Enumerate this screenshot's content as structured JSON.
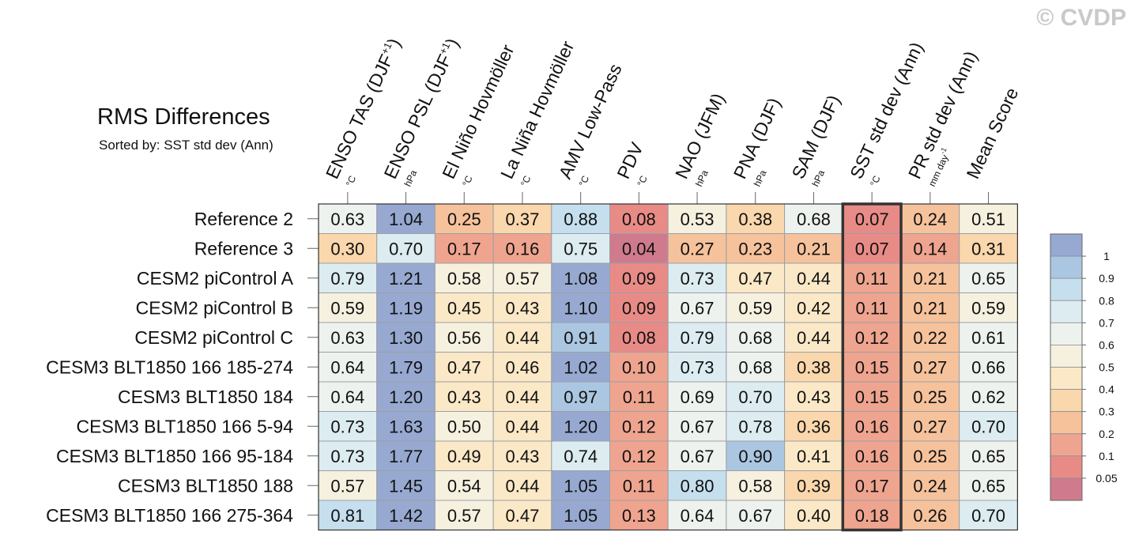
{
  "watermark": "© CVDP",
  "title": "RMS Differences",
  "subtitle": "Sorted by: SST std dev (Ann)",
  "highlight_column": "SST std dev (Ann)",
  "colorbar": {
    "labels": [
      "1",
      "0.9",
      "0.8",
      "0.7",
      "0.6",
      "0.5",
      "0.4",
      "0.3",
      "0.2",
      "0.1",
      "0.05"
    ],
    "colors": [
      "#97a9d1",
      "#abc6e0",
      "#c6dfee",
      "#dcecf1",
      "#eef2ee",
      "#f6f0df",
      "#fbe8c6",
      "#fad7ac",
      "#f6c29c",
      "#efa48f",
      "#e88b87",
      "#cf7b8d"
    ]
  },
  "chart_data": {
    "type": "heatmap",
    "title": "RMS Differences",
    "subtitle": "Sorted by: SST std dev (Ann)",
    "columns": [
      {
        "name": "ENSO TAS (DJF",
        "sup": "+1",
        "close": ")",
        "unit": "°C"
      },
      {
        "name": "ENSO PSL (DJF",
        "sup": "+1",
        "close": ")",
        "unit": "hPa"
      },
      {
        "name": "El Niño Hovmöller",
        "unit": "°C"
      },
      {
        "name": "La Niña Hovmöller",
        "unit": "°C"
      },
      {
        "name": "AMV Low-Pass",
        "unit": "°C"
      },
      {
        "name": "PDV",
        "unit": "°C"
      },
      {
        "name": "NAO (JFM)",
        "unit": "hPa"
      },
      {
        "name": "PNA (DJF)",
        "unit": "hPa"
      },
      {
        "name": "SAM (DJF)",
        "unit": "hPa"
      },
      {
        "name": "SST std dev (Ann)",
        "unit": "°C"
      },
      {
        "name": "PR std dev (Ann)",
        "unit": "mm day",
        "unit_sup": "-1"
      },
      {
        "name": "Mean Score",
        "unit": ""
      }
    ],
    "rows": [
      "Reference 2",
      "Reference 3",
      "CESM2 piControl A",
      "CESM2 piControl B",
      "CESM2 piControl C",
      "CESM3 BLT1850 166 185-274",
      "CESM3 BLT1850 184",
      "CESM3 BLT1850 166 5-94",
      "CESM3 BLT1850 166 95-184",
      "CESM3 BLT1850 188",
      "CESM3 BLT1850 166 275-364"
    ],
    "values": [
      [
        "0.63",
        "1.04",
        "0.25",
        "0.37",
        "0.88",
        "0.08",
        "0.53",
        "0.38",
        "0.68",
        "0.07",
        "0.24",
        "0.51"
      ],
      [
        "0.30",
        "0.70",
        "0.17",
        "0.16",
        "0.75",
        "0.04",
        "0.27",
        "0.23",
        "0.21",
        "0.07",
        "0.14",
        "0.31"
      ],
      [
        "0.79",
        "1.21",
        "0.58",
        "0.57",
        "1.08",
        "0.09",
        "0.73",
        "0.47",
        "0.44",
        "0.11",
        "0.21",
        "0.65"
      ],
      [
        "0.59",
        "1.19",
        "0.45",
        "0.43",
        "1.10",
        "0.09",
        "0.67",
        "0.59",
        "0.42",
        "0.11",
        "0.21",
        "0.59"
      ],
      [
        "0.63",
        "1.30",
        "0.56",
        "0.44",
        "0.91",
        "0.08",
        "0.79",
        "0.68",
        "0.44",
        "0.12",
        "0.22",
        "0.61"
      ],
      [
        "0.64",
        "1.79",
        "0.47",
        "0.46",
        "1.02",
        "0.10",
        "0.73",
        "0.68",
        "0.38",
        "0.15",
        "0.27",
        "0.66"
      ],
      [
        "0.64",
        "1.20",
        "0.43",
        "0.44",
        "0.97",
        "0.11",
        "0.69",
        "0.70",
        "0.43",
        "0.15",
        "0.25",
        "0.62"
      ],
      [
        "0.73",
        "1.63",
        "0.50",
        "0.44",
        "1.20",
        "0.12",
        "0.67",
        "0.78",
        "0.36",
        "0.16",
        "0.27",
        "0.70"
      ],
      [
        "0.73",
        "1.77",
        "0.49",
        "0.43",
        "0.74",
        "0.12",
        "0.67",
        "0.90",
        "0.41",
        "0.16",
        "0.25",
        "0.65"
      ],
      [
        "0.57",
        "1.45",
        "0.54",
        "0.44",
        "1.05",
        "0.11",
        "0.80",
        "0.58",
        "0.39",
        "0.17",
        "0.24",
        "0.65"
      ],
      [
        "0.81",
        "1.42",
        "0.57",
        "0.47",
        "1.05",
        "0.13",
        "0.64",
        "0.67",
        "0.40",
        "0.18",
        "0.26",
        "0.70"
      ]
    ]
  }
}
